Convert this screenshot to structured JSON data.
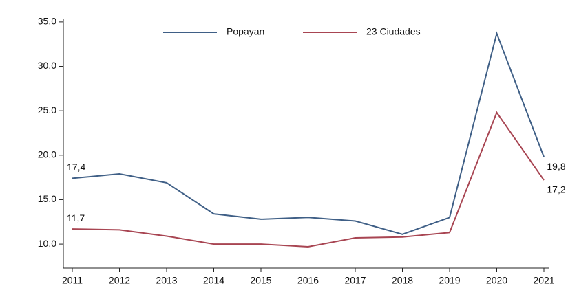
{
  "chart_data": {
    "type": "line",
    "categories": [
      "2011",
      "2012",
      "2013",
      "2014",
      "2015",
      "2016",
      "2017",
      "2018",
      "2019",
      "2020",
      "2021"
    ],
    "series": [
      {
        "name": "Popayan",
        "color": "#3f5f86",
        "values": [
          17.4,
          17.9,
          16.9,
          13.4,
          12.8,
          13.0,
          12.6,
          11.1,
          13.0,
          33.7,
          19.8
        ],
        "value_labels": [
          "17,4",
          null,
          null,
          null,
          null,
          null,
          null,
          null,
          null,
          null,
          "19,8"
        ]
      },
      {
        "name": "23 Ciudades",
        "color": "#a84552",
        "values": [
          11.7,
          11.6,
          10.9,
          10.0,
          10.0,
          9.7,
          10.7,
          10.8,
          11.3,
          24.8,
          17.2
        ],
        "value_labels": [
          "11,7",
          null,
          null,
          null,
          null,
          null,
          null,
          null,
          null,
          null,
          "17,2"
        ]
      }
    ],
    "ylim": [
      7.3,
      35.3
    ],
    "yticks": [
      {
        "value": 10,
        "label": "10.0"
      },
      {
        "value": 15,
        "label": "15.0"
      },
      {
        "value": 20,
        "label": "20.0"
      },
      {
        "value": 25,
        "label": "25.0"
      },
      {
        "value": 30,
        "label": "30.0"
      },
      {
        "value": 35,
        "label": "35.0"
      }
    ],
    "legend": "top"
  }
}
